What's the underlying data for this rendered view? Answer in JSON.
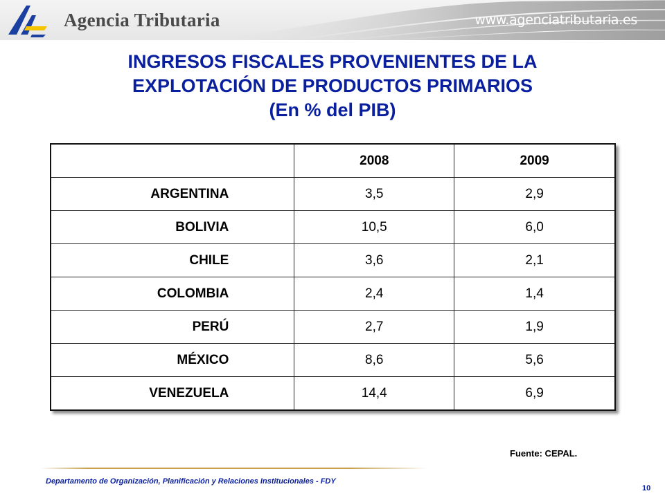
{
  "header": {
    "org_name": "Agencia Tributaria",
    "url": "www.agenciatributaria.es",
    "logo_icon": "agencia-tributaria-logo-icon",
    "colors": {
      "logo_blue": "#1b3fa0",
      "logo_yellow": "#f5c400",
      "title_blue": "#0a1f9e"
    }
  },
  "title": {
    "line1": "INGRESOS FISCALES PROVENIENTES DE LA",
    "line2": "EXPLOTACIÓN DE PRODUCTOS PRIMARIOS",
    "line3": "(En % del PIB)"
  },
  "table": {
    "columns": [
      "",
      "2008",
      "2009"
    ],
    "rows": [
      {
        "country": "ARGENTINA",
        "v2008": "3,5",
        "v2009": "2,9"
      },
      {
        "country": "BOLIVIA",
        "v2008": "10,5",
        "v2009": "6,0"
      },
      {
        "country": "CHILE",
        "v2008": "3,6",
        "v2009": "2,1"
      },
      {
        "country": "COLOMBIA",
        "v2008": "2,4",
        "v2009": "1,4"
      },
      {
        "country": "PERÚ",
        "v2008": "2,7",
        "v2009": "1,9"
      },
      {
        "country": "MÉXICO",
        "v2008": "8,6",
        "v2009": "5,6"
      },
      {
        "country": "VENEZUELA",
        "v2008": "14,4",
        "v2009": "6,9"
      }
    ]
  },
  "source": "Fuente: CEPAL.",
  "footer": {
    "department": "Departamento  de Organización, Planificación y Relaciones Institucionales - FDY",
    "page_number": "10"
  }
}
